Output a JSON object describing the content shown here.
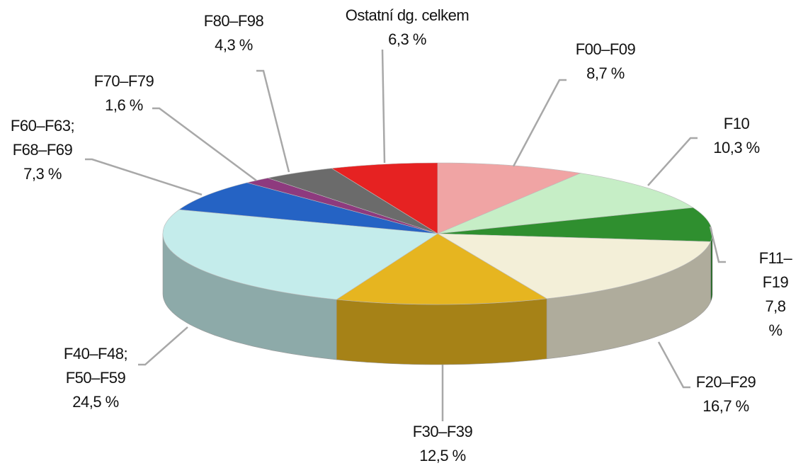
{
  "chart_data": {
    "type": "pie",
    "categories": [
      "F00–F09",
      "F10",
      "F11–F19",
      "F20–F29",
      "F30–F39",
      "F40–F48;\nF50–F59",
      "F60–F63;\nF68–F69",
      "F70–F79",
      "F80–F98",
      "Ostatní dg. celkem"
    ],
    "values": [
      8.7,
      10.3,
      7.8,
      16.7,
      12.5,
      24.5,
      7.3,
      1.6,
      4.3,
      6.3
    ],
    "value_labels": [
      "8,7 %",
      "10,3 %",
      "7,8 %",
      "16,7 %",
      "12,5 %",
      "24,5 %",
      "7,3 %",
      "1,6 %",
      "4,3 %",
      "6,3 %"
    ],
    "colors": [
      "#f0a4a4",
      "#c6eec6",
      "#2f8f2f",
      "#f3efd8",
      "#e6b520",
      "#c4eceb",
      "#2563c4",
      "#8e3a7e",
      "#6b6b6b",
      "#e62222"
    ]
  }
}
